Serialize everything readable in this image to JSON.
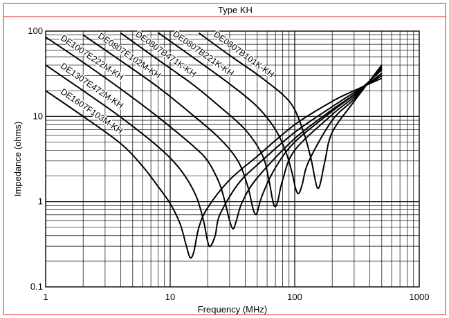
{
  "chart_data": {
    "type": "line",
    "title": "Type KH",
    "xlabel": "Frequency (MHz)",
    "ylabel": "Impedance (ohms)",
    "x_scale": "log",
    "y_scale": "log",
    "xlim": [
      1,
      1000
    ],
    "ylim": [
      0.1,
      100
    ],
    "x_ticks": [
      "1",
      "10",
      "100",
      "1000"
    ],
    "y_ticks": [
      "0.1",
      "1",
      "10",
      "100"
    ],
    "grid": true,
    "frame_color": "#e31b23",
    "series": [
      {
        "name": "DE1607F103M-KH",
        "points": [
          [
            1,
            20
          ],
          [
            2,
            10
          ],
          [
            4,
            4.8
          ],
          [
            6,
            2.6
          ],
          [
            8,
            1.5
          ],
          [
            10,
            0.95
          ],
          [
            12,
            0.55
          ],
          [
            13.5,
            0.3
          ],
          [
            14.5,
            0.22
          ],
          [
            15.5,
            0.26
          ],
          [
            17,
            0.5
          ],
          [
            20,
            0.85
          ],
          [
            30,
            1.8
          ],
          [
            50,
            3.4
          ],
          [
            100,
            8
          ],
          [
            200,
            15
          ],
          [
            300,
            20
          ],
          [
            500,
            28
          ]
        ]
      },
      {
        "name": "DE1307E472M-KH",
        "points": [
          [
            1,
            40
          ],
          [
            2,
            20
          ],
          [
            4,
            9.8
          ],
          [
            8,
            4.4
          ],
          [
            12,
            2.4
          ],
          [
            16,
            1.2
          ],
          [
            18.5,
            0.6
          ],
          [
            20,
            0.34
          ],
          [
            21,
            0.3
          ],
          [
            23,
            0.4
          ],
          [
            25,
            0.7
          ],
          [
            35,
            1.6
          ],
          [
            50,
            2.7
          ],
          [
            100,
            6.5
          ],
          [
            200,
            13
          ],
          [
            300,
            19
          ],
          [
            500,
            30
          ]
        ]
      },
      {
        "name": "DE1007E222M-KH",
        "points": [
          [
            1,
            85
          ],
          [
            2,
            43
          ],
          [
            4,
            21
          ],
          [
            8,
            9.8
          ],
          [
            15,
            4.6
          ],
          [
            20,
            3
          ],
          [
            25,
            1.6
          ],
          [
            28,
            0.9
          ],
          [
            30,
            0.6
          ],
          [
            32,
            0.48
          ],
          [
            34,
            0.6
          ],
          [
            38,
            1
          ],
          [
            50,
            1.9
          ],
          [
            100,
            5.5
          ],
          [
            200,
            12
          ],
          [
            300,
            18
          ],
          [
            500,
            32
          ]
        ]
      },
      {
        "name": "DE0807E102M-KH",
        "points": [
          [
            2,
            90
          ],
          [
            4,
            45
          ],
          [
            8,
            22
          ],
          [
            15,
            10.5
          ],
          [
            25,
            5.5
          ],
          [
            35,
            3
          ],
          [
            42,
            1.5
          ],
          [
            46,
            0.85
          ],
          [
            48,
            0.72
          ],
          [
            50,
            0.75
          ],
          [
            55,
            1.2
          ],
          [
            70,
            2.5
          ],
          [
            100,
            5
          ],
          [
            200,
            11.5
          ],
          [
            300,
            18
          ],
          [
            500,
            35
          ]
        ]
      },
      {
        "name": "DE0807B471K-KH",
        "points": [
          [
            4,
            95
          ],
          [
            8,
            46
          ],
          [
            15,
            24
          ],
          [
            25,
            13
          ],
          [
            40,
            7
          ],
          [
            55,
            3.5
          ],
          [
            62,
            1.8
          ],
          [
            66,
            1.1
          ],
          [
            69,
            0.88
          ],
          [
            73,
            1
          ],
          [
            80,
            1.8
          ],
          [
            100,
            4
          ],
          [
            200,
            10.5
          ],
          [
            300,
            17
          ],
          [
            500,
            36
          ]
        ]
      },
      {
        "name": "DE0807B221K-KH",
        "points": [
          [
            8,
            96
          ],
          [
            15,
            50
          ],
          [
            30,
            24
          ],
          [
            50,
            13
          ],
          [
            70,
            7
          ],
          [
            85,
            3.8
          ],
          [
            95,
            2.2
          ],
          [
            102,
            1.4
          ],
          [
            108,
            1.25
          ],
          [
            115,
            1.6
          ],
          [
            130,
            3
          ],
          [
            200,
            9
          ],
          [
            300,
            16
          ],
          [
            500,
            38
          ]
        ]
      },
      {
        "name": "DE0807B101K-KH",
        "points": [
          [
            17,
            95
          ],
          [
            30,
            52
          ],
          [
            50,
            31
          ],
          [
            80,
            18
          ],
          [
            100,
            12
          ],
          [
            120,
            6
          ],
          [
            135,
            3.2
          ],
          [
            145,
            1.9
          ],
          [
            152,
            1.45
          ],
          [
            160,
            1.6
          ],
          [
            175,
            3
          ],
          [
            200,
            6.5
          ],
          [
            300,
            15
          ],
          [
            500,
            40
          ]
        ]
      }
    ]
  }
}
